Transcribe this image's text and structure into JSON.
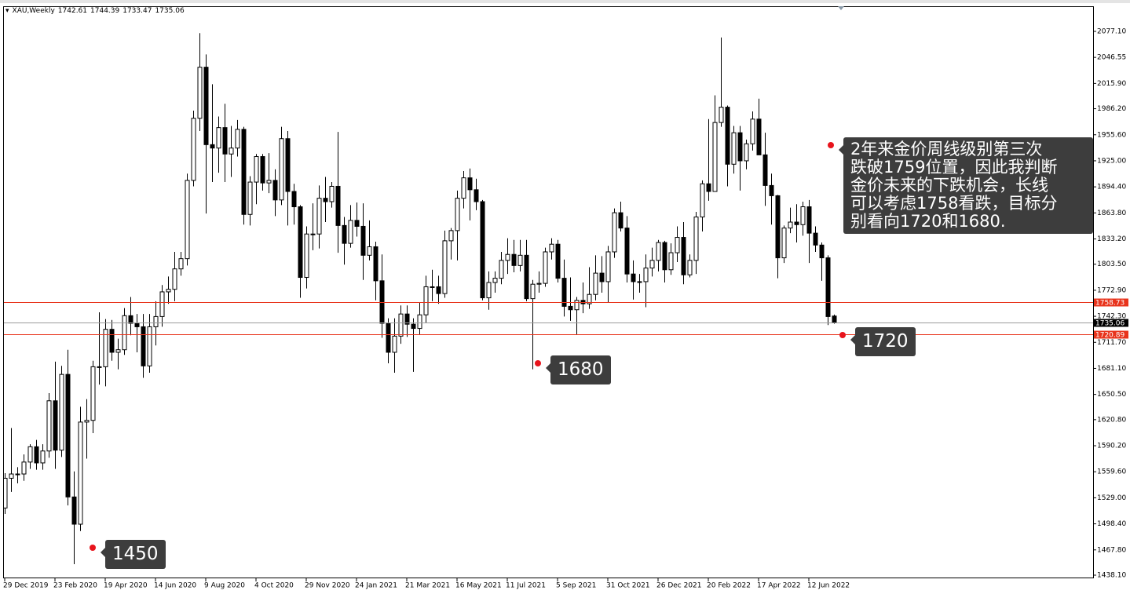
{
  "chart_data": {
    "type": "candlestick",
    "title": "XAU,Weekly",
    "ohlc": [
      1742.61,
      1744.39,
      1733.47,
      1735.06
    ],
    "categories": [
      "29 Dec 2019",
      null,
      null,
      null,
      null,
      null,
      null,
      null,
      "23 Feb 2020",
      null,
      null,
      null,
      null,
      null,
      null,
      null,
      "19 Apr 2020",
      null,
      null,
      null,
      null,
      null,
      null,
      null,
      "14 Jun 2020",
      null,
      null,
      null,
      null,
      null,
      null,
      null,
      "9 Aug 2020",
      null,
      null,
      null,
      null,
      null,
      null,
      null,
      "4 Oct 2020",
      null,
      null,
      null,
      null,
      null,
      null,
      null,
      "29 Nov 2020",
      null,
      null,
      null,
      null,
      null,
      null,
      null,
      "24 Jan 2021",
      null,
      null,
      null,
      null,
      null,
      null,
      null,
      "21 Mar 2021",
      null,
      null,
      null,
      null,
      null,
      null,
      null,
      "16 May 2021",
      null,
      null,
      null,
      null,
      null,
      null,
      null,
      "11 Jul 2021",
      null,
      null,
      null,
      null,
      null,
      null,
      null,
      "5 Sep 2021",
      null,
      null,
      null,
      null,
      null,
      null,
      null,
      "31 Oct 2021",
      null,
      null,
      null,
      null,
      null,
      null,
      null,
      "26 Dec 2021",
      null,
      null,
      null,
      null,
      null,
      null,
      null,
      "20 Feb 2022",
      null,
      null,
      null,
      null,
      null,
      null,
      null,
      "17 Apr 2022",
      null,
      null,
      null,
      null,
      null,
      null,
      null,
      "12 Jun 2022",
      null,
      null,
      null,
      null
    ],
    "open": [
      1517,
      1552,
      1557,
      1557,
      1571,
      1589,
      1570,
      1584,
      1643,
      1585,
      1674,
      1530,
      1498,
      1618,
      1620,
      1683,
      1683,
      1727,
      1700,
      1703,
      1743,
      1734,
      1730,
      1684,
      1730,
      1742,
      1771,
      1774,
      1798,
      1810,
      1902,
      1975,
      2035,
      1944,
      1940,
      1964,
      1933,
      1940,
      1962,
      1862,
      1900,
      1930,
      1899,
      1902,
      1879,
      1951,
      1889,
      1871,
      1788,
      1839,
      1839,
      1881,
      1877,
      1895,
      1849,
      1828,
      1855,
      1848,
      1814,
      1824,
      1784,
      1734,
      1700,
      1719,
      1745,
      1733,
      1728,
      1744,
      1777,
      1777,
      1769,
      1831,
      1843,
      1881,
      1905,
      1891,
      1877,
      1764,
      1782,
      1787,
      1808,
      1815,
      1802,
      1814,
      1763,
      1780,
      1781,
      1818,
      1827,
      1787,
      1754,
      1750,
      1761,
      1757,
      1768,
      1793,
      1783,
      1818,
      1864,
      1846,
      1792,
      1783,
      1783,
      1799,
      1808,
      1829,
      1797,
      1817,
      1835,
      1791,
      1808,
      1859,
      1898,
      1889,
      1970,
      1988,
      1921,
      1958,
      1925,
      1945,
      1974,
      1932,
      1896,
      1884,
      1811,
      1846,
      1853,
      1850,
      1871,
      1840,
      1826,
      1811,
      1742.61
    ],
    "high": [
      1558,
      1611,
      1565,
      1580,
      1592,
      1597,
      1592,
      1652,
      1689,
      1684,
      1703,
      1560,
      1636,
      1645,
      1690,
      1747,
      1739,
      1738,
      1716,
      1752,
      1765,
      1745,
      1745,
      1745,
      1760,
      1779,
      1789,
      1818,
      1818,
      1910,
      1984,
      2075,
      2050,
      2015,
      1977,
      1992,
      1966,
      1973,
      1965,
      1907,
      1933,
      1933,
      1934,
      1915,
      1965,
      1960,
      1898,
      1873,
      1848,
      1875,
      1896,
      1906,
      1900,
      1959,
      1859,
      1873,
      1876,
      1875,
      1855,
      1830,
      1815,
      1740,
      1740,
      1755,
      1755,
      1740,
      1758,
      1790,
      1797,
      1790,
      1843,
      1846,
      1890,
      1913,
      1916,
      1904,
      1879,
      1795,
      1795,
      1818,
      1834,
      1832,
      1832,
      1832,
      1785,
      1795,
      1823,
      1834,
      1832,
      1809,
      1788,
      1765,
      1782,
      1800,
      1814,
      1813,
      1825,
      1869,
      1877,
      1860,
      1808,
      1792,
      1815,
      1823,
      1832,
      1831,
      1828,
      1848,
      1853,
      1815,
      1865,
      1902,
      1974,
      2002,
      2070,
      1990,
      1966,
      1966,
      1950,
      1983,
      1998,
      1958,
      1910,
      1885,
      1849,
      1870,
      1874,
      1877,
      1879,
      1848,
      1829,
      1814,
      1744.39
    ],
    "low": [
      1510,
      1536,
      1546,
      1549,
      1563,
      1562,
      1562,
      1576,
      1563,
      1577,
      1520,
      1451,
      1490,
      1575,
      1605,
      1662,
      1660,
      1690,
      1680,
      1697,
      1720,
      1700,
      1670,
      1676,
      1708,
      1730,
      1757,
      1760,
      1790,
      1802,
      1895,
      1960,
      1863,
      1900,
      1911,
      1900,
      1906,
      1930,
      1850,
      1849,
      1874,
      1890,
      1887,
      1860,
      1873,
      1849,
      1850,
      1764,
      1775,
      1820,
      1822,
      1853,
      1870,
      1817,
      1803,
      1823,
      1836,
      1785,
      1808,
      1761,
      1717,
      1687,
      1676,
      1710,
      1718,
      1677,
      1721,
      1735,
      1760,
      1757,
      1764,
      1809,
      1808,
      1869,
      1855,
      1867,
      1761,
      1750,
      1770,
      1780,
      1792,
      1794,
      1795,
      1760,
      1680,
      1770,
      1777,
      1809,
      1782,
      1742,
      1737,
      1721,
      1746,
      1751,
      1761,
      1770,
      1758,
      1811,
      1842,
      1782,
      1762,
      1770,
      1753,
      1789,
      1795,
      1782,
      1791,
      1806,
      1780,
      1788,
      1792,
      1842,
      1878,
      1889,
      1965,
      1895,
      1910,
      1890,
      1915,
      1937,
      1936,
      1872,
      1850,
      1787,
      1805,
      1840,
      1829,
      1837,
      1805,
      1818,
      1784,
      1732,
      1733.47
    ],
    "close": [
      1552,
      1557,
      1557,
      1571,
      1589,
      1570,
      1584,
      1643,
      1585,
      1674,
      1530,
      1498,
      1618,
      1620,
      1683,
      1683,
      1727,
      1700,
      1703,
      1743,
      1734,
      1730,
      1684,
      1730,
      1742,
      1771,
      1774,
      1798,
      1810,
      1902,
      1975,
      2035,
      1944,
      1940,
      1964,
      1933,
      1940,
      1962,
      1862,
      1900,
      1930,
      1899,
      1902,
      1879,
      1951,
      1889,
      1871,
      1788,
      1839,
      1839,
      1881,
      1877,
      1895,
      1849,
      1828,
      1855,
      1848,
      1814,
      1824,
      1784,
      1734,
      1700,
      1719,
      1745,
      1733,
      1728,
      1744,
      1777,
      1777,
      1769,
      1831,
      1843,
      1881,
      1905,
      1891,
      1877,
      1764,
      1782,
      1787,
      1808,
      1815,
      1802,
      1814,
      1763,
      1780,
      1781,
      1818,
      1827,
      1787,
      1754,
      1750,
      1761,
      1757,
      1768,
      1793,
      1783,
      1818,
      1864,
      1846,
      1792,
      1783,
      1783,
      1799,
      1808,
      1829,
      1797,
      1817,
      1835,
      1791,
      1808,
      1859,
      1898,
      1889,
      1970,
      1988,
      1921,
      1958,
      1925,
      1945,
      1974,
      1932,
      1896,
      1884,
      1811,
      1846,
      1853,
      1850,
      1871,
      1840,
      1826,
      1811,
      1742,
      1735.06
    ],
    "up_color": "#ffffff",
    "down_color": "#000000",
    "ylim": [
      1434.4,
      2106.6
    ],
    "yticks": [
      {
        "value": 2077.1,
        "label": "2077.10"
      },
      2046.55,
      {
        "value": 2015.9,
        "label": "2015.90"
      },
      {
        "value": 1986.2,
        "label": "1986.20"
      },
      {
        "value": 1955.6,
        "label": "1955.60"
      },
      {
        "value": 1925.0,
        "label": "1925.00"
      },
      {
        "value": 1894.4,
        "label": "1894.40"
      },
      {
        "value": 1863.8,
        "label": "1863.80"
      },
      {
        "value": 1833.2,
        "label": "1833.20"
      },
      {
        "value": 1803.5,
        "label": "1803.50"
      },
      {
        "value": 1772.9,
        "label": "1772.90"
      },
      {
        "value": 1742.3,
        "label": "1742.30"
      },
      {
        "value": 1711.7,
        "label": "1711.70"
      },
      {
        "value": 1681.1,
        "label": "1681.10"
      },
      {
        "value": 1650.5,
        "label": "1650.50"
      },
      {
        "value": 1620.8,
        "label": "1620.80"
      },
      {
        "value": 1590.2,
        "label": "1590.20"
      },
      {
        "value": 1559.6,
        "label": "1559.60"
      },
      {
        "value": 1529.0,
        "label": "1529.00"
      },
      {
        "value": 1498.4,
        "label": "1498.40"
      },
      {
        "value": 1467.8,
        "label": "1467.80"
      },
      {
        "value": 1438.1,
        "label": "1438.10"
      }
    ],
    "hlines": [
      {
        "value": 1758.73,
        "color": "#e8341c",
        "label_color": "#e8341c"
      },
      {
        "value": 1735.06,
        "color": "#9a9a9a",
        "label_color": "#000000"
      },
      {
        "value": 1720.89,
        "color": "#e8341c",
        "label_color": "#e8341c"
      }
    ],
    "annotations": [
      {
        "text": "1450"
      },
      {
        "text": "1680"
      },
      {
        "text": "1720"
      },
      {
        "lines": [
          "2年来金价周线级别第三次",
          "跌破1759位置，因此我判断",
          "金价未来的下跌机会，长线",
          "可以考虑1758看跌，目标分",
          "别看向1720和1680."
        ]
      }
    ]
  }
}
